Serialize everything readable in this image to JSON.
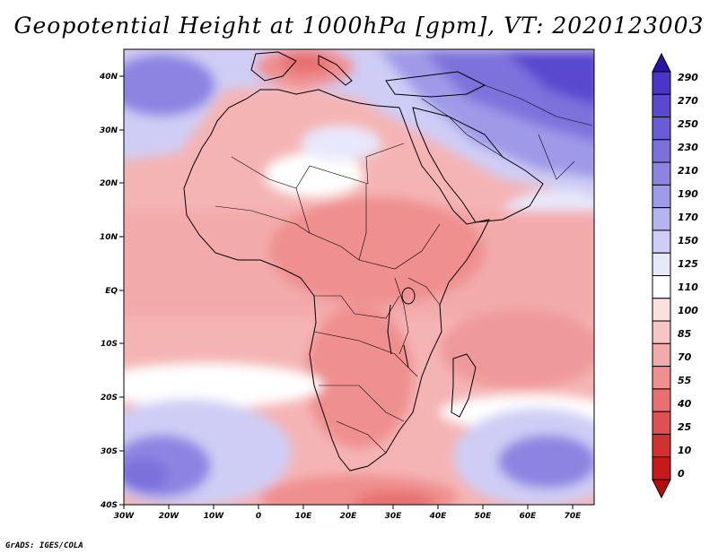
{
  "title": "Geopotential Height at 1000hPa [gpm], VT: 2020123003",
  "credit": "GrADS: IGES/COLA",
  "map": {
    "lon_ticks": [
      "30W",
      "20W",
      "10W",
      "0",
      "10E",
      "20E",
      "30E",
      "40E",
      "50E",
      "60E",
      "70E"
    ],
    "lat_ticks": [
      "40N",
      "30N",
      "20N",
      "10N",
      "EQ",
      "10S",
      "20S",
      "30S",
      "40S"
    ],
    "lon_range": [
      -30,
      75
    ],
    "lat_range": [
      -40,
      45
    ]
  },
  "colorbar": {
    "levels": [
      "290",
      "270",
      "250",
      "230",
      "210",
      "190",
      "170",
      "150",
      "125",
      "110",
      "100",
      "85",
      "70",
      "55",
      "40",
      "25",
      "10",
      "0"
    ],
    "colors": [
      "#4a35c8",
      "#5a48cf",
      "#6a5bd6",
      "#7b70dc",
      "#8d84e2",
      "#a09be8",
      "#b6b3ee",
      "#cfcdf5",
      "#e8e8fb",
      "#ffffff",
      "#fbe0e0",
      "#f7c5c5",
      "#f3aaaa",
      "#ef8f8f",
      "#e87070",
      "#df5050",
      "#d33030",
      "#c81818"
    ],
    "top_color": "#2a14a8",
    "bottom_color": "#b80c0c"
  }
}
